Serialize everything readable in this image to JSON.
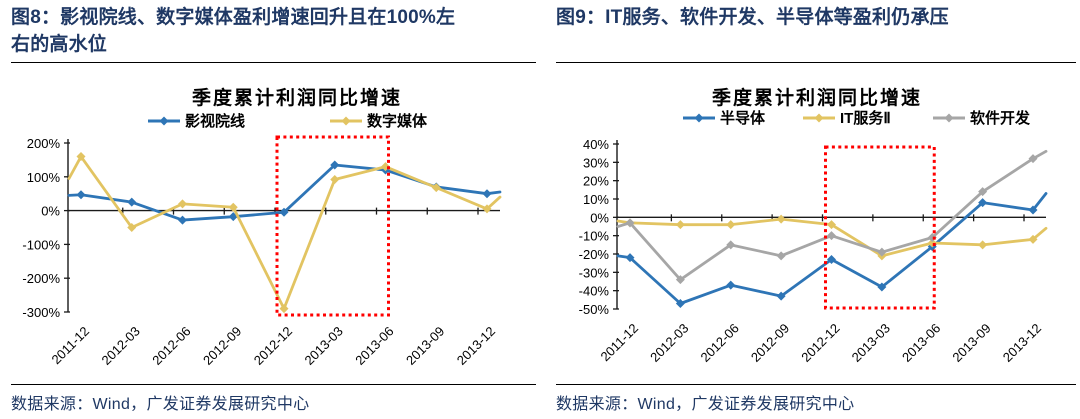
{
  "panels": [
    {
      "heading": "图8：影视院线、数字媒体盈利增速回升且在100%左右的高水位",
      "source": "数据来源：Wind，广发证券发展研究中心"
    },
    {
      "heading": "图9：IT服务、软件开发、半导体等盈利仍承压",
      "source": "数据来源：Wind，广发证券发展研究中心"
    }
  ],
  "colors": {
    "heading_navy": "#1F3864",
    "axis_black": "#1a1a1a",
    "highlight_red": "#FF0000",
    "series_blue": "#2E75B6",
    "series_gold": "#E2C462",
    "series_gray": "#A6A6A6"
  },
  "chart_data": [
    {
      "id": "fig8",
      "type": "line",
      "title": "季度累计利润同比增速",
      "categories": [
        "2011-12",
        "2012-03",
        "2012-06",
        "2012-09",
        "2012-12",
        "2013-03",
        "2013-06",
        "2013-09",
        "2013-12"
      ],
      "ylim": [
        -300,
        200
      ],
      "ytick_step": 100,
      "ytick_labels": [
        "200%",
        "100%",
        "0%",
        "-100%",
        "-200%",
        "-300%"
      ],
      "grid": false,
      "legend_position": "top",
      "series": [
        {
          "name": "影视院线",
          "color": "#2E75B6",
          "values": [
            47,
            25,
            -28,
            -18,
            -5,
            135,
            120,
            70,
            50
          ],
          "edge_lead": 45,
          "edge_tail": 55
        },
        {
          "name": "数字媒体",
          "color": "#E2C462",
          "values": [
            160,
            -50,
            20,
            10,
            -290,
            92,
            130,
            68,
            5
          ],
          "edge_lead": 95,
          "edge_tail": 40
        }
      ],
      "highlight_box": {
        "from": "2012-12",
        "to": "2013-06",
        "color": "#FF0000"
      }
    },
    {
      "id": "fig9",
      "type": "line",
      "title": "季度累计利润同比增速",
      "categories": [
        "2011-12",
        "2012-03",
        "2012-06",
        "2012-09",
        "2012-12",
        "2013-03",
        "2013-06",
        "2013-09",
        "2013-12"
      ],
      "ylim": [
        -50,
        40
      ],
      "ytick_step": 10,
      "ytick_labels": [
        "40%",
        "30%",
        "20%",
        "10%",
        "0%",
        "-10%",
        "-20%",
        "-30%",
        "-40%",
        "-50%"
      ],
      "grid": false,
      "legend_position": "top",
      "series": [
        {
          "name": "半导体",
          "color": "#2E75B6",
          "values": [
            -22,
            -47,
            -37,
            -43,
            -23,
            -38,
            -16,
            8,
            4
          ],
          "edge_lead": -21,
          "edge_tail": 13
        },
        {
          "name": "IT服务Ⅱ",
          "color": "#E2C462",
          "values": [
            -3,
            -4,
            -4,
            -1,
            -4,
            -21,
            -14,
            -15,
            -12
          ],
          "edge_lead": -2,
          "edge_tail": -6
        },
        {
          "name": "软件开发",
          "color": "#A6A6A6",
          "values": [
            -3,
            -34,
            -15,
            -21,
            -10,
            -19,
            -11,
            14,
            32
          ],
          "edge_lead": -5,
          "edge_tail": 36
        }
      ],
      "highlight_box": {
        "from": "2012-12",
        "to": "2013-06",
        "color": "#FF0000"
      }
    }
  ]
}
